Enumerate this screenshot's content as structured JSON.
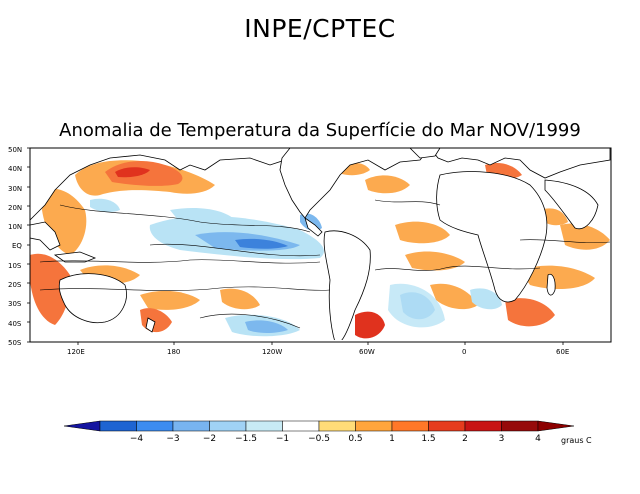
{
  "header": {
    "title": "INPE/CPTEC"
  },
  "map": {
    "title": "Anomalia de Temperatura da Superfície do Mar NOV/1999",
    "lat_labels": [
      "50N",
      "40N",
      "30N",
      "20N",
      "10N",
      "EQ",
      "10S",
      "20S",
      "30S",
      "40S",
      "50S"
    ],
    "lon_labels": [
      "120E",
      "180",
      "120W",
      "60W",
      "0",
      "60E"
    ]
  },
  "colorbar": {
    "labels": [
      "-4",
      "-3",
      "-2",
      "-1.5",
      "-1",
      "-0.5",
      "0.5",
      "1",
      "1.5",
      "2",
      "3",
      "4"
    ],
    "colors": [
      "#1414a0",
      "#1e64d2",
      "#3c8cf0",
      "#78b4f0",
      "#a0d2f5",
      "#c8ebf5",
      "#ffffff",
      "#ffdc78",
      "#ffa53c",
      "#ff7828",
      "#e63c1e",
      "#c81414",
      "#960a0a",
      "#8c0000"
    ],
    "units": "graus C"
  },
  "legend_colors": {
    "land": "#ffffff",
    "warm_weak": "#fcaa4f",
    "warm_mid": "#f5743c",
    "warm_strong": "#e0321e",
    "cold_weak": "#b9e3f5",
    "cold_mid": "#7cb8ee",
    "cold_strong": "#3c82dc"
  }
}
